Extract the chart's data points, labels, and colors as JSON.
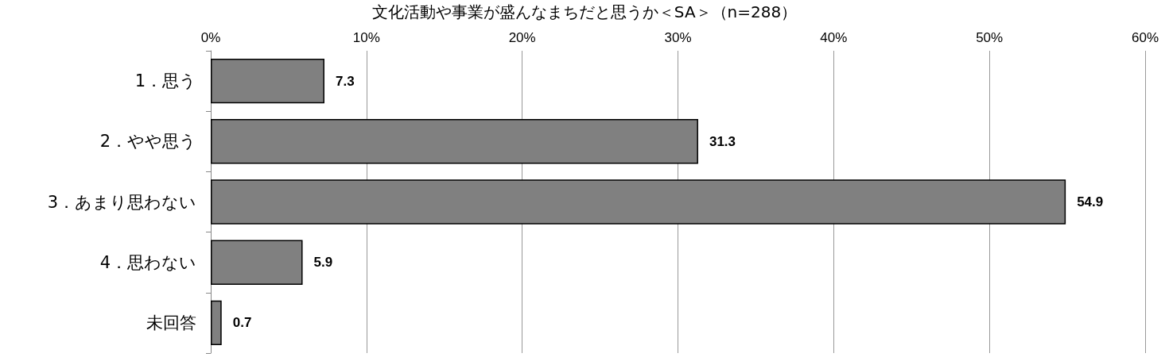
{
  "chart_data": {
    "type": "bar",
    "orientation": "horizontal",
    "title": "文化活動や事業が盛んなまちだと思うか＜SA＞（n=288）",
    "categories": [
      "1．思う",
      "2．やや思う",
      "3．あまり思わない",
      "4．思わない",
      "未回答"
    ],
    "values": [
      7.3,
      31.3,
      54.9,
      5.9,
      0.7
    ],
    "color": "#808080",
    "data_labels": true,
    "xlim": [
      0,
      60
    ],
    "xticks": [
      {
        "value": 0,
        "label": "0%"
      },
      {
        "value": 10,
        "label": "10%"
      },
      {
        "value": 20,
        "label": "20%"
      },
      {
        "value": 30,
        "label": "30%"
      },
      {
        "value": 40,
        "label": "40%"
      },
      {
        "value": 50,
        "label": "50%"
      },
      {
        "value": 60,
        "label": "60%"
      }
    ],
    "grid": "x"
  }
}
